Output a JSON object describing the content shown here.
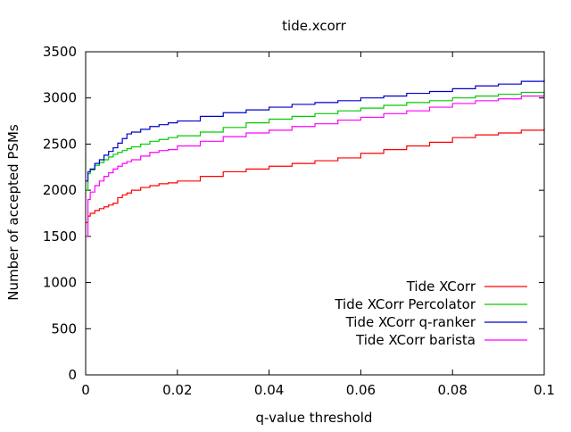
{
  "chart_data": {
    "type": "line",
    "title": "tide.xcorr",
    "xlabel": "q-value threshold",
    "ylabel": "Number of accepted PSMs",
    "xlim": [
      0,
      0.1
    ],
    "ylim": [
      0,
      3500
    ],
    "xticks": [
      0,
      0.02,
      0.04,
      0.06,
      0.08,
      0.1
    ],
    "xtick_labels": [
      "0",
      "0.02",
      "0.04",
      "0.06",
      "0.08",
      "0.1"
    ],
    "yticks": [
      0,
      500,
      1000,
      1500,
      2000,
      2500,
      3000,
      3500
    ],
    "ytick_labels": [
      "0",
      "500",
      "1000",
      "1500",
      "2000",
      "2500",
      "3000",
      "3500"
    ],
    "grid": false,
    "legend_position": "bottom-right",
    "series": [
      {
        "name": "Tide XCorr",
        "color": "#ff0000",
        "x": [
          0,
          0.0005,
          0.001,
          0.002,
          0.003,
          0.004,
          0.005,
          0.006,
          0.007,
          0.008,
          0.009,
          0.01,
          0.012,
          0.014,
          0.016,
          0.018,
          0.02,
          0.025,
          0.03,
          0.035,
          0.04,
          0.045,
          0.05,
          0.055,
          0.06,
          0.065,
          0.07,
          0.075,
          0.08,
          0.085,
          0.09,
          0.095,
          0.1
        ],
        "values": [
          1650,
          1720,
          1750,
          1780,
          1800,
          1820,
          1840,
          1860,
          1920,
          1950,
          1970,
          2000,
          2030,
          2050,
          2070,
          2080,
          2100,
          2150,
          2200,
          2230,
          2260,
          2290,
          2320,
          2350,
          2400,
          2440,
          2480,
          2520,
          2570,
          2600,
          2620,
          2650,
          2670
        ]
      },
      {
        "name": "Tide XCorr Percolator",
        "color": "#00cc00",
        "x": [
          0,
          0.0005,
          0.001,
          0.002,
          0.003,
          0.004,
          0.005,
          0.006,
          0.007,
          0.008,
          0.009,
          0.01,
          0.012,
          0.014,
          0.016,
          0.018,
          0.02,
          0.025,
          0.03,
          0.035,
          0.04,
          0.045,
          0.05,
          0.055,
          0.06,
          0.065,
          0.07,
          0.075,
          0.08,
          0.085,
          0.09,
          0.095,
          0.1
        ],
        "values": [
          2000,
          2180,
          2220,
          2270,
          2300,
          2330,
          2360,
          2390,
          2410,
          2430,
          2450,
          2470,
          2500,
          2530,
          2550,
          2570,
          2590,
          2630,
          2680,
          2730,
          2770,
          2800,
          2830,
          2860,
          2890,
          2920,
          2950,
          2970,
          3000,
          3020,
          3040,
          3060,
          3080
        ]
      },
      {
        "name": "Tide XCorr q-ranker",
        "color": "#0000cc",
        "x": [
          0,
          0.0005,
          0.001,
          0.002,
          0.003,
          0.004,
          0.005,
          0.006,
          0.007,
          0.008,
          0.009,
          0.01,
          0.012,
          0.014,
          0.016,
          0.018,
          0.02,
          0.025,
          0.03,
          0.035,
          0.04,
          0.045,
          0.05,
          0.055,
          0.06,
          0.065,
          0.07,
          0.075,
          0.08,
          0.085,
          0.09,
          0.095,
          0.1
        ],
        "values": [
          2100,
          2200,
          2230,
          2290,
          2330,
          2380,
          2420,
          2460,
          2510,
          2560,
          2610,
          2630,
          2660,
          2690,
          2710,
          2730,
          2750,
          2800,
          2840,
          2870,
          2900,
          2930,
          2950,
          2970,
          3000,
          3020,
          3050,
          3070,
          3100,
          3130,
          3150,
          3180,
          3200
        ]
      },
      {
        "name": "Tide XCorr barista",
        "color": "#ff00ff",
        "x": [
          0,
          0.0005,
          0.001,
          0.002,
          0.003,
          0.004,
          0.005,
          0.006,
          0.007,
          0.008,
          0.009,
          0.01,
          0.012,
          0.014,
          0.016,
          0.018,
          0.02,
          0.025,
          0.03,
          0.035,
          0.04,
          0.045,
          0.05,
          0.055,
          0.06,
          0.065,
          0.07,
          0.075,
          0.08,
          0.085,
          0.09,
          0.095,
          0.1
        ],
        "values": [
          1500,
          1900,
          1980,
          2050,
          2100,
          2150,
          2190,
          2230,
          2260,
          2290,
          2310,
          2330,
          2370,
          2410,
          2430,
          2440,
          2480,
          2530,
          2580,
          2620,
          2650,
          2690,
          2720,
          2760,
          2790,
          2830,
          2860,
          2900,
          2940,
          2970,
          2990,
          3020,
          3050
        ]
      }
    ]
  }
}
